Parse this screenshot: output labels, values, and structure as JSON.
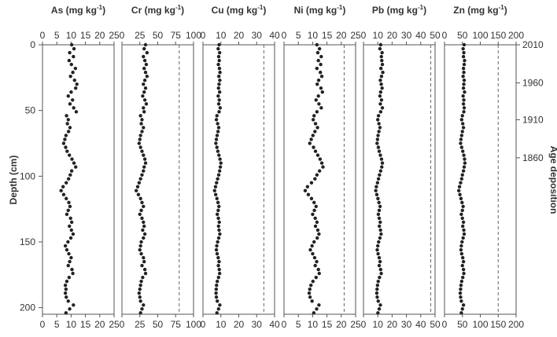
{
  "chart_data": {
    "type": "scatter",
    "ylabel": "Depth (cm)",
    "ylim": [
      0,
      205
    ],
    "ytick_values": [
      0,
      50,
      100,
      150,
      200
    ],
    "right_axis": {
      "label": "Age deposition",
      "ticks": [
        {
          "depth": 0,
          "label": "2010"
        },
        {
          "depth": 29,
          "label": "1960"
        },
        {
          "depth": 57,
          "label": "1910"
        },
        {
          "depth": 86,
          "label": "1860"
        }
      ]
    },
    "depth": [
      0,
      3,
      6,
      9,
      12,
      15,
      18,
      21,
      24,
      27,
      30,
      33,
      36,
      39,
      42,
      45,
      48,
      51,
      54,
      57,
      60,
      63,
      66,
      69,
      72,
      75,
      78,
      81,
      84,
      87,
      90,
      93,
      96,
      99,
      102,
      105,
      108,
      111,
      114,
      117,
      120,
      123,
      126,
      129,
      132,
      135,
      138,
      141,
      144,
      147,
      150,
      153,
      156,
      159,
      162,
      165,
      168,
      171,
      174,
      177,
      180,
      183,
      186,
      189,
      192,
      195,
      198,
      201,
      204
    ],
    "panels": [
      {
        "title": "As (mg kg",
        "exponent": "-1",
        "title_end": ")",
        "xlim": [
          0,
          25
        ],
        "xticks": [
          "0",
          "5",
          "10",
          "15",
          "20",
          "25"
        ],
        "threshold": null,
        "values": [
          10.2,
          11.0,
          9.5,
          10.8,
          9.3,
          10.1,
          11.5,
          10.6,
          9.8,
          11.2,
          12.0,
          11.6,
          10.0,
          9.0,
          10.5,
          9.6,
          10.9,
          11.8,
          8.4,
          9.0,
          8.7,
          9.6,
          9.1,
          8.2,
          7.8,
          7.4,
          8.1,
          8.6,
          9.4,
          10.3,
          11.0,
          11.6,
          10.2,
          9.7,
          9.1,
          8.3,
          7.2,
          6.5,
          7.4,
          8.3,
          9.2,
          9.6,
          9.0,
          8.5,
          9.8,
          10.2,
          9.4,
          10.1,
          10.7,
          9.9,
          8.9,
          8.0,
          8.5,
          9.2,
          10.0,
          9.5,
          9.0,
          10.3,
          10.6,
          9.3,
          8.5,
          8.0,
          8.2,
          8.0,
          8.3,
          9.0,
          10.8,
          9.5,
          8.2
        ]
      },
      {
        "title": "Cr (mg kg",
        "exponent": "-1",
        "title_end": ")",
        "xlim": [
          0,
          100
        ],
        "xticks": [
          "0",
          "25",
          "50",
          "75",
          "100"
        ],
        "threshold": 80,
        "values": [
          33,
          31,
          35,
          30,
          32,
          34,
          31,
          33,
          35,
          32,
          30,
          33,
          31,
          29,
          32,
          34,
          30,
          31,
          26,
          28,
          27,
          30,
          28,
          26,
          25,
          24,
          26,
          28,
          30,
          32,
          33,
          31,
          30,
          28,
          26,
          24,
          22,
          20,
          23,
          26,
          28,
          30,
          27,
          25,
          28,
          30,
          31,
          29,
          32,
          30,
          27,
          26,
          25,
          27,
          30,
          31,
          28,
          32,
          33,
          29,
          27,
          26,
          25,
          24,
          25,
          26,
          30,
          28,
          26
        ]
      },
      {
        "title": "Cu (mg kg",
        "exponent": "-1",
        "title_end": ")",
        "xlim": [
          0,
          40
        ],
        "xticks": [
          "0",
          "10",
          "20",
          "30",
          "40"
        ],
        "threshold": 34,
        "values": [
          9.0,
          8.5,
          9.3,
          8.8,
          9.1,
          8.6,
          9.2,
          9.5,
          8.9,
          9.4,
          9.0,
          8.7,
          9.3,
          8.5,
          9.1,
          8.8,
          9.6,
          9.0,
          7.8,
          7.5,
          8.2,
          8.8,
          8.4,
          7.9,
          7.5,
          7.2,
          7.8,
          8.3,
          8.9,
          9.5,
          10.0,
          9.7,
          9.3,
          8.8,
          8.2,
          7.6,
          7.0,
          6.5,
          7.1,
          7.8,
          8.4,
          8.9,
          8.5,
          8.0,
          8.6,
          9.1,
          8.7,
          9.0,
          9.4,
          8.8,
          8.2,
          7.7,
          7.5,
          7.9,
          8.5,
          9.0,
          8.6,
          9.1,
          9.3,
          8.7,
          8.0,
          7.6,
          7.4,
          7.3,
          7.5,
          8.0,
          9.4,
          8.7,
          7.8
        ]
      },
      {
        "title": "Ni (mg kg",
        "exponent": "-1",
        "title_end": ")",
        "xlim": [
          0,
          25
        ],
        "xticks": [
          "0",
          "5",
          "10",
          "15",
          "20",
          "25"
        ],
        "threshold": 21,
        "values": [
          11.5,
          12.4,
          11.8,
          13.0,
          12.0,
          12.8,
          11.5,
          12.7,
          13.2,
          12.1,
          11.6,
          12.9,
          13.4,
          12.0,
          11.2,
          12.2,
          13.0,
          11.5,
          10.5,
          10.2,
          11.0,
          11.7,
          10.8,
          10.1,
          9.5,
          9.0,
          10.3,
          11.0,
          11.8,
          12.6,
          13.2,
          13.6,
          12.4,
          11.5,
          10.8,
          9.6,
          8.2,
          7.4,
          8.5,
          9.6,
          10.5,
          11.2,
          10.6,
          10.0,
          10.9,
          11.5,
          11.0,
          11.8,
          12.2,
          11.6,
          10.5,
          9.8,
          9.2,
          10.0,
          10.7,
          11.4,
          10.9,
          12.0,
          12.3,
          11.2,
          10.1,
          9.4,
          9.0,
          8.8,
          9.1,
          9.8,
          12.2,
          11.4,
          10.4
        ]
      },
      {
        "title": "Pb (mg kg",
        "exponent": "-1",
        "title_end": ")",
        "xlim": [
          0,
          50
        ],
        "xticks": [
          "0",
          "10",
          "20",
          "30",
          "40",
          "50"
        ],
        "threshold": 47,
        "values": [
          12.0,
          11.5,
          13.0,
          12.5,
          12.8,
          13.2,
          12.2,
          13.5,
          12.6,
          11.8,
          12.4,
          13.0,
          12.0,
          11.5,
          12.6,
          11.8,
          13.2,
          12.0,
          10.5,
          10.0,
          10.8,
          11.5,
          10.8,
          10.2,
          9.8,
          9.5,
          10.4,
          11.0,
          11.8,
          12.6,
          13.2,
          12.8,
          12.0,
          11.2,
          10.5,
          9.8,
          9.0,
          8.6,
          9.3,
          10.1,
          10.8,
          11.6,
          11.0,
          10.4,
          11.0,
          11.7,
          11.1,
          11.9,
          12.3,
          11.5,
          10.6,
          10.0,
          9.6,
          10.2,
          11.0,
          11.6,
          11.0,
          12.0,
          12.4,
          11.2,
          10.3,
          9.8,
          9.5,
          9.3,
          9.6,
          10.3,
          11.8,
          11.0,
          10.1
        ]
      },
      {
        "title": "Zn (mg kg",
        "exponent": "-1",
        "title_end": ")",
        "xlim": [
          0,
          200
        ],
        "xticks": [
          "0",
          "50",
          "100",
          "150",
          "200"
        ],
        "threshold": 150,
        "values": [
          55,
          52,
          54,
          53,
          56,
          55,
          53,
          54,
          52,
          55,
          54,
          53,
          56,
          52,
          54,
          53,
          55,
          54,
          50,
          48,
          51,
          53,
          50,
          48,
          46,
          45,
          48,
          51,
          54,
          56,
          57,
          55,
          53,
          50,
          48,
          45,
          42,
          40,
          43,
          46,
          49,
          52,
          50,
          47,
          50,
          53,
          51,
          54,
          55,
          52,
          49,
          47,
          46,
          48,
          51,
          53,
          50,
          53,
          54,
          51,
          48,
          46,
          45,
          44,
          45,
          47,
          53,
          50,
          47
        ]
      }
    ]
  }
}
